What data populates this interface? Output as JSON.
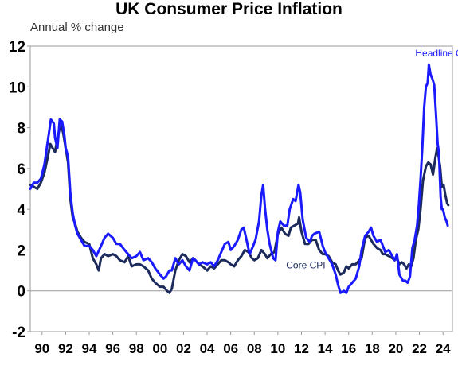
{
  "chart_data": {
    "type": "line",
    "title": "UK Consumer Price Inflation",
    "subtitle": "Annual % change",
    "ylim": [
      -2,
      12
    ],
    "yticks": [
      -2,
      0,
      2,
      4,
      6,
      8,
      10,
      12
    ],
    "xlim": [
      1989.0,
      2024.8
    ],
    "xticks": [
      {
        "x": 1990,
        "label": "90"
      },
      {
        "x": 1992,
        "label": "92"
      },
      {
        "x": 1994,
        "label": "94"
      },
      {
        "x": 1996,
        "label": "96"
      },
      {
        "x": 1998,
        "label": "98"
      },
      {
        "x": 2000,
        "label": "00"
      },
      {
        "x": 2002,
        "label": "02"
      },
      {
        "x": 2004,
        "label": "04"
      },
      {
        "x": 2006,
        "label": "06"
      },
      {
        "x": 2008,
        "label": "08"
      },
      {
        "x": 2010,
        "label": "10"
      },
      {
        "x": 2012,
        "label": "12"
      },
      {
        "x": 2014,
        "label": "14"
      },
      {
        "x": 2016,
        "label": "16"
      },
      {
        "x": 2018,
        "label": "18"
      },
      {
        "x": 2020,
        "label": "20"
      },
      {
        "x": 2022,
        "label": "22"
      },
      {
        "x": 2024,
        "label": "24"
      }
    ],
    "grid": false,
    "zero_line": true,
    "series": [
      {
        "name": "Headline CPI",
        "color": "#1a1aff",
        "points": [
          [
            1989.0,
            5.0
          ],
          [
            1989.3,
            5.3
          ],
          [
            1989.6,
            5.3
          ],
          [
            1989.9,
            5.5
          ],
          [
            1990.2,
            6.2
          ],
          [
            1990.5,
            7.4
          ],
          [
            1990.75,
            8.4
          ],
          [
            1991.0,
            8.2
          ],
          [
            1991.1,
            7.5
          ],
          [
            1991.3,
            7.0
          ],
          [
            1991.5,
            8.4
          ],
          [
            1991.7,
            8.3
          ],
          [
            1991.9,
            7.6
          ],
          [
            1992.0,
            7.0
          ],
          [
            1992.2,
            6.6
          ],
          [
            1992.4,
            4.8
          ],
          [
            1992.6,
            3.8
          ],
          [
            1992.8,
            3.2
          ],
          [
            1993.0,
            2.8
          ],
          [
            1993.3,
            2.5
          ],
          [
            1993.6,
            2.2
          ],
          [
            1994.0,
            2.2
          ],
          [
            1994.3,
            2.0
          ],
          [
            1994.6,
            1.7
          ],
          [
            1995.0,
            2.2
          ],
          [
            1995.3,
            2.6
          ],
          [
            1995.6,
            2.8
          ],
          [
            1996.0,
            2.6
          ],
          [
            1996.3,
            2.3
          ],
          [
            1996.6,
            2.3
          ],
          [
            1997.0,
            2.0
          ],
          [
            1997.3,
            1.8
          ],
          [
            1997.6,
            1.6
          ],
          [
            1998.0,
            1.7
          ],
          [
            1998.3,
            1.9
          ],
          [
            1998.6,
            1.5
          ],
          [
            1999.0,
            1.6
          ],
          [
            1999.3,
            1.4
          ],
          [
            1999.6,
            1.1
          ],
          [
            2000.0,
            0.8
          ],
          [
            2000.3,
            0.6
          ],
          [
            2000.5,
            0.7
          ],
          [
            2000.8,
            1.0
          ],
          [
            2001.0,
            1.0
          ],
          [
            2001.3,
            1.6
          ],
          [
            2001.6,
            1.3
          ],
          [
            2001.9,
            1.5
          ],
          [
            2002.2,
            1.2
          ],
          [
            2002.5,
            1.0
          ],
          [
            2002.8,
            1.6
          ],
          [
            2003.0,
            1.5
          ],
          [
            2003.3,
            1.3
          ],
          [
            2003.6,
            1.4
          ],
          [
            2004.0,
            1.3
          ],
          [
            2004.3,
            1.4
          ],
          [
            2004.6,
            1.2
          ],
          [
            2004.9,
            1.5
          ],
          [
            2005.2,
            1.9
          ],
          [
            2005.5,
            2.3
          ],
          [
            2005.8,
            2.4
          ],
          [
            2006.0,
            2.0
          ],
          [
            2006.3,
            2.2
          ],
          [
            2006.6,
            2.5
          ],
          [
            2006.9,
            3.0
          ],
          [
            2007.1,
            3.1
          ],
          [
            2007.3,
            2.6
          ],
          [
            2007.6,
            1.8
          ],
          [
            2007.9,
            2.2
          ],
          [
            2008.1,
            2.5
          ],
          [
            2008.4,
            3.4
          ],
          [
            2008.6,
            4.7
          ],
          [
            2008.75,
            5.2
          ],
          [
            2008.9,
            4.1
          ],
          [
            2009.1,
            3.0
          ],
          [
            2009.3,
            2.3
          ],
          [
            2009.6,
            1.6
          ],
          [
            2009.8,
            1.5
          ],
          [
            2010.0,
            2.9
          ],
          [
            2010.2,
            3.4
          ],
          [
            2010.5,
            3.2
          ],
          [
            2010.8,
            3.2
          ],
          [
            2011.0,
            4.0
          ],
          [
            2011.3,
            4.5
          ],
          [
            2011.5,
            4.4
          ],
          [
            2011.75,
            5.2
          ],
          [
            2011.9,
            4.8
          ],
          [
            2012.1,
            3.5
          ],
          [
            2012.4,
            2.6
          ],
          [
            2012.7,
            2.4
          ],
          [
            2012.9,
            2.7
          ],
          [
            2013.1,
            2.8
          ],
          [
            2013.5,
            2.9
          ],
          [
            2013.8,
            2.2
          ],
          [
            2014.0,
            1.9
          ],
          [
            2014.3,
            1.6
          ],
          [
            2014.6,
            1.3
          ],
          [
            2014.9,
            0.8
          ],
          [
            2015.1,
            0.3
          ],
          [
            2015.3,
            -0.1
          ],
          [
            2015.6,
            0.0
          ],
          [
            2015.8,
            -0.1
          ],
          [
            2016.0,
            0.2
          ],
          [
            2016.3,
            0.4
          ],
          [
            2016.6,
            0.6
          ],
          [
            2016.9,
            1.2
          ],
          [
            2017.1,
            2.0
          ],
          [
            2017.4,
            2.7
          ],
          [
            2017.7,
            2.9
          ],
          [
            2017.9,
            3.1
          ],
          [
            2018.1,
            2.7
          ],
          [
            2018.4,
            2.4
          ],
          [
            2018.7,
            2.5
          ],
          [
            2018.9,
            2.2
          ],
          [
            2019.1,
            1.9
          ],
          [
            2019.4,
            2.0
          ],
          [
            2019.7,
            1.7
          ],
          [
            2019.9,
            1.5
          ],
          [
            2020.1,
            1.8
          ],
          [
            2020.3,
            0.8
          ],
          [
            2020.6,
            0.5
          ],
          [
            2020.8,
            0.5
          ],
          [
            2021.0,
            0.4
          ],
          [
            2021.2,
            0.7
          ],
          [
            2021.4,
            2.1
          ],
          [
            2021.6,
            2.5
          ],
          [
            2021.8,
            3.2
          ],
          [
            2021.95,
            4.2
          ],
          [
            2022.1,
            5.5
          ],
          [
            2022.25,
            7.0
          ],
          [
            2022.4,
            9.0
          ],
          [
            2022.55,
            10.0
          ],
          [
            2022.7,
            10.2
          ],
          [
            2022.8,
            11.1
          ],
          [
            2022.95,
            10.6
          ],
          [
            2023.1,
            10.4
          ],
          [
            2023.25,
            10.1
          ],
          [
            2023.4,
            8.7
          ],
          [
            2023.55,
            7.2
          ],
          [
            2023.65,
            6.8
          ],
          [
            2023.8,
            4.6
          ],
          [
            2023.9,
            4.0
          ],
          [
            2024.0,
            4.0
          ],
          [
            2024.15,
            3.6
          ],
          [
            2024.3,
            3.4
          ],
          [
            2024.4,
            3.2
          ]
        ]
      },
      {
        "name": "Core CPI",
        "color": "#1c2a5c",
        "points": [
          [
            1989.0,
            5.2
          ],
          [
            1989.3,
            5.1
          ],
          [
            1989.6,
            5.0
          ],
          [
            1989.9,
            5.3
          ],
          [
            1990.2,
            5.8
          ],
          [
            1990.5,
            6.6
          ],
          [
            1990.7,
            7.2
          ],
          [
            1990.9,
            7.0
          ],
          [
            1991.1,
            6.8
          ],
          [
            1991.3,
            7.5
          ],
          [
            1991.6,
            8.2
          ],
          [
            1991.8,
            7.7
          ],
          [
            1992.0,
            7.0
          ],
          [
            1992.2,
            6.3
          ],
          [
            1992.4,
            4.5
          ],
          [
            1992.6,
            3.6
          ],
          [
            1992.8,
            3.3
          ],
          [
            1993.0,
            2.9
          ],
          [
            1993.3,
            2.6
          ],
          [
            1993.6,
            2.4
          ],
          [
            1994.0,
            2.3
          ],
          [
            1994.3,
            1.6
          ],
          [
            1994.6,
            1.3
          ],
          [
            1994.8,
            1.0
          ],
          [
            1995.0,
            1.6
          ],
          [
            1995.3,
            1.8
          ],
          [
            1995.6,
            1.7
          ],
          [
            1996.0,
            1.8
          ],
          [
            1996.3,
            1.7
          ],
          [
            1996.6,
            1.5
          ],
          [
            1997.0,
            1.4
          ],
          [
            1997.3,
            1.7
          ],
          [
            1997.6,
            1.2
          ],
          [
            1998.0,
            1.3
          ],
          [
            1998.3,
            1.3
          ],
          [
            1998.6,
            1.2
          ],
          [
            1999.0,
            1.0
          ],
          [
            1999.3,
            0.6
          ],
          [
            1999.6,
            0.4
          ],
          [
            2000.0,
            0.2
          ],
          [
            2000.3,
            0.2
          ],
          [
            2000.6,
            0.0
          ],
          [
            2000.8,
            -0.1
          ],
          [
            2001.0,
            0.1
          ],
          [
            2001.3,
            1.0
          ],
          [
            2001.6,
            1.5
          ],
          [
            2001.9,
            1.8
          ],
          [
            2002.2,
            1.7
          ],
          [
            2002.5,
            1.4
          ],
          [
            2002.8,
            1.6
          ],
          [
            2003.0,
            1.5
          ],
          [
            2003.3,
            1.3
          ],
          [
            2003.6,
            1.2
          ],
          [
            2004.0,
            1.0
          ],
          [
            2004.3,
            1.2
          ],
          [
            2004.6,
            1.1
          ],
          [
            2004.9,
            1.3
          ],
          [
            2005.2,
            1.5
          ],
          [
            2005.5,
            1.5
          ],
          [
            2005.8,
            1.4
          ],
          [
            2006.0,
            1.3
          ],
          [
            2006.3,
            1.2
          ],
          [
            2006.6,
            1.5
          ],
          [
            2006.9,
            1.7
          ],
          [
            2007.2,
            2.0
          ],
          [
            2007.5,
            1.9
          ],
          [
            2007.8,
            1.6
          ],
          [
            2008.0,
            1.5
          ],
          [
            2008.3,
            1.6
          ],
          [
            2008.6,
            2.0
          ],
          [
            2008.9,
            1.8
          ],
          [
            2009.1,
            1.6
          ],
          [
            2009.4,
            1.8
          ],
          [
            2009.7,
            1.9
          ],
          [
            2010.0,
            2.8
          ],
          [
            2010.3,
            3.1
          ],
          [
            2010.6,
            2.8
          ],
          [
            2010.9,
            2.7
          ],
          [
            2011.1,
            3.1
          ],
          [
            2011.4,
            3.2
          ],
          [
            2011.7,
            3.3
          ],
          [
            2011.8,
            3.6
          ],
          [
            2012.0,
            2.9
          ],
          [
            2012.3,
            2.3
          ],
          [
            2012.6,
            2.3
          ],
          [
            2012.9,
            2.5
          ],
          [
            2013.2,
            2.5
          ],
          [
            2013.5,
            2.0
          ],
          [
            2013.8,
            1.8
          ],
          [
            2014.0,
            1.8
          ],
          [
            2014.3,
            1.7
          ],
          [
            2014.6,
            1.4
          ],
          [
            2014.9,
            1.3
          ],
          [
            2015.1,
            1.0
          ],
          [
            2015.3,
            0.8
          ],
          [
            2015.6,
            0.9
          ],
          [
            2015.8,
            1.2
          ],
          [
            2016.0,
            1.1
          ],
          [
            2016.3,
            1.3
          ],
          [
            2016.6,
            1.3
          ],
          [
            2016.9,
            1.5
          ],
          [
            2017.1,
            1.6
          ],
          [
            2017.4,
            2.6
          ],
          [
            2017.7,
            2.7
          ],
          [
            2017.9,
            2.5
          ],
          [
            2018.1,
            2.3
          ],
          [
            2018.4,
            2.1
          ],
          [
            2018.7,
            2.0
          ],
          [
            2018.9,
            1.8
          ],
          [
            2019.1,
            1.8
          ],
          [
            2019.4,
            1.7
          ],
          [
            2019.7,
            1.6
          ],
          [
            2019.9,
            1.5
          ],
          [
            2020.1,
            1.6
          ],
          [
            2020.3,
            1.3
          ],
          [
            2020.5,
            1.4
          ],
          [
            2020.7,
            1.3
          ],
          [
            2020.9,
            1.1
          ],
          [
            2021.1,
            1.3
          ],
          [
            2021.3,
            1.2
          ],
          [
            2021.5,
            1.6
          ],
          [
            2021.7,
            2.5
          ],
          [
            2021.9,
            3.0
          ],
          [
            2022.1,
            4.0
          ],
          [
            2022.3,
            5.4
          ],
          [
            2022.55,
            6.1
          ],
          [
            2022.75,
            6.3
          ],
          [
            2022.95,
            6.2
          ],
          [
            2023.15,
            5.7
          ],
          [
            2023.35,
            6.5
          ],
          [
            2023.5,
            7.0
          ],
          [
            2023.6,
            6.7
          ],
          [
            2023.75,
            6.1
          ],
          [
            2023.9,
            5.1
          ],
          [
            2024.05,
            5.2
          ],
          [
            2024.2,
            4.7
          ],
          [
            2024.35,
            4.3
          ],
          [
            2024.45,
            4.2
          ]
        ]
      }
    ],
    "annotations": [
      {
        "text": "Headline CPI",
        "series": "Headline CPI",
        "anchor": [
          2021.65,
          11.5
        ]
      },
      {
        "text": "Core CPI",
        "series": "Core CPI",
        "anchor": [
          2010.7,
          1.1
        ]
      }
    ]
  }
}
